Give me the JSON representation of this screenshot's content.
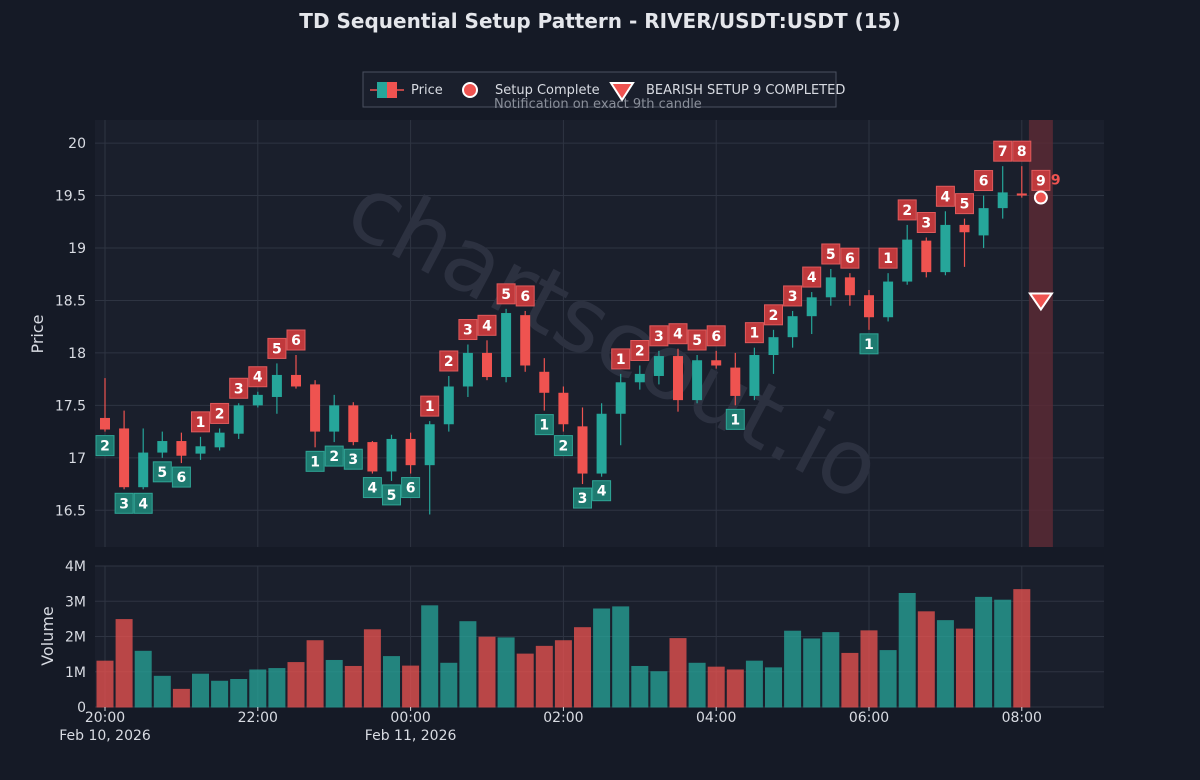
{
  "chart_data": {
    "type": "candlestick",
    "title": "TD Sequential Setup Pattern - RIVER/USDT:USDT (15)",
    "watermark": "chartscout.io",
    "price_axis": {
      "label": "Price",
      "ylim": [
        16.15,
        20.22
      ],
      "ticks": [
        16.5,
        17,
        17.5,
        18,
        18.5,
        19,
        19.5,
        20
      ],
      "tick_labels": [
        "16.5",
        "17",
        "17.5",
        "18",
        "18.5",
        "19",
        "19.5",
        "20"
      ]
    },
    "volume_axis": {
      "label": "Volume",
      "ylim": [
        0,
        4000000
      ],
      "ticks": [
        0,
        1000000,
        2000000,
        3000000,
        4000000
      ],
      "tick_labels": [
        "0",
        "1M",
        "2M",
        "3M",
        "4M"
      ]
    },
    "x_axis": {
      "ticks": [
        {
          "index": 0,
          "time": "20:00",
          "date": "Feb 10, 2026"
        },
        {
          "index": 8,
          "time": "22:00",
          "date": ""
        },
        {
          "index": 16,
          "time": "00:00",
          "date": "Feb 11, 2026"
        },
        {
          "index": 24,
          "time": "02:00",
          "date": ""
        },
        {
          "index": 32,
          "time": "04:00",
          "date": ""
        },
        {
          "index": 40,
          "time": "06:00",
          "date": ""
        },
        {
          "index": 48,
          "time": "08:00",
          "date": ""
        }
      ],
      "count": 52
    },
    "legend": {
      "price": "Price",
      "setup_complete": "Setup Complete",
      "bearish": "BEARISH SETUP 9 COMPLETED",
      "note": "Notification on exact 9th candle"
    },
    "colors": {
      "up": "#26a69a",
      "down": "#ef5350",
      "bg": "#151a26",
      "plot_bg": "#1a1f2c",
      "grid": "#2e3442",
      "up_label": "#1e7a70",
      "down_label": "#c0393c",
      "highlight": "#5a2a35"
    },
    "highlight_index": 49,
    "completed_label": "9",
    "completed_marker_price": 18.5,
    "candles": [
      {
        "o": 17.38,
        "h": 17.76,
        "l": 17.25,
        "c": 17.27,
        "v": 1300000,
        "n": "2",
        "p": "below"
      },
      {
        "o": 17.28,
        "h": 17.45,
        "l": 16.7,
        "c": 16.72,
        "v": 2480000,
        "n": "3",
        "p": "below"
      },
      {
        "o": 16.72,
        "h": 17.28,
        "l": 16.7,
        "c": 17.05,
        "v": 1580000,
        "n": "4",
        "p": "below"
      },
      {
        "o": 17.05,
        "h": 17.25,
        "l": 17.0,
        "c": 17.16,
        "v": 870000,
        "n": "5",
        "p": "below"
      },
      {
        "o": 17.16,
        "h": 17.24,
        "l": 16.95,
        "c": 17.02,
        "v": 500000,
        "n": "6",
        "p": "below"
      },
      {
        "o": 17.04,
        "h": 17.2,
        "l": 16.98,
        "c": 17.11,
        "v": 930000,
        "n": "1",
        "p": "above"
      },
      {
        "o": 17.1,
        "h": 17.28,
        "l": 17.07,
        "c": 17.24,
        "v": 730000,
        "n": "2",
        "p": "above"
      },
      {
        "o": 17.23,
        "h": 17.52,
        "l": 17.18,
        "c": 17.5,
        "v": 780000,
        "n": "3",
        "p": "above"
      },
      {
        "o": 17.5,
        "h": 17.63,
        "l": 17.48,
        "c": 17.6,
        "v": 1050000,
        "n": "4",
        "p": "above"
      },
      {
        "o": 17.58,
        "h": 17.9,
        "l": 17.42,
        "c": 17.79,
        "v": 1090000,
        "n": "5",
        "p": "above"
      },
      {
        "o": 17.79,
        "h": 17.98,
        "l": 17.66,
        "c": 17.68,
        "v": 1260000,
        "n": "6",
        "p": "above"
      },
      {
        "o": 17.7,
        "h": 17.74,
        "l": 17.1,
        "c": 17.25,
        "v": 1880000,
        "n": "1",
        "p": "below"
      },
      {
        "o": 17.25,
        "h": 17.6,
        "l": 17.15,
        "c": 17.5,
        "v": 1320000,
        "n": "2",
        "p": "below"
      },
      {
        "o": 17.5,
        "h": 17.53,
        "l": 17.12,
        "c": 17.15,
        "v": 1150000,
        "n": "3",
        "p": "below"
      },
      {
        "o": 17.15,
        "h": 17.16,
        "l": 16.85,
        "c": 16.87,
        "v": 2190000,
        "n": "4",
        "p": "below"
      },
      {
        "o": 16.87,
        "h": 17.22,
        "l": 16.78,
        "c": 17.18,
        "v": 1430000,
        "n": "5",
        "p": "below"
      },
      {
        "o": 17.18,
        "h": 17.24,
        "l": 16.85,
        "c": 16.93,
        "v": 1160000,
        "n": "6",
        "p": "below"
      },
      {
        "o": 16.93,
        "h": 17.35,
        "l": 16.46,
        "c": 17.32,
        "v": 2870000,
        "n": "1",
        "p": "above"
      },
      {
        "o": 17.32,
        "h": 17.78,
        "l": 17.25,
        "c": 17.68,
        "v": 1240000,
        "n": "2",
        "p": "above"
      },
      {
        "o": 17.68,
        "h": 18.08,
        "l": 17.58,
        "c": 18.0,
        "v": 2420000,
        "n": "3",
        "p": "above"
      },
      {
        "o": 18.0,
        "h": 18.12,
        "l": 17.74,
        "c": 17.77,
        "v": 1980000,
        "n": "4",
        "p": "above"
      },
      {
        "o": 17.77,
        "h": 18.42,
        "l": 17.72,
        "c": 18.38,
        "v": 1960000,
        "n": "5",
        "p": "above"
      },
      {
        "o": 18.36,
        "h": 18.4,
        "l": 17.82,
        "c": 17.88,
        "v": 1500000,
        "n": "6",
        "p": "above"
      },
      {
        "o": 17.82,
        "h": 17.95,
        "l": 17.45,
        "c": 17.62,
        "v": 1720000,
        "n": "1",
        "p": "below"
      },
      {
        "o": 17.62,
        "h": 17.68,
        "l": 17.25,
        "c": 17.32,
        "v": 1880000,
        "n": "2",
        "p": "below"
      },
      {
        "o": 17.3,
        "h": 17.48,
        "l": 16.75,
        "c": 16.85,
        "v": 2250000,
        "n": "3",
        "p": "below"
      },
      {
        "o": 16.85,
        "h": 17.52,
        "l": 16.82,
        "c": 17.42,
        "v": 2780000,
        "n": "4",
        "p": "below"
      },
      {
        "o": 17.42,
        "h": 17.8,
        "l": 17.12,
        "c": 17.72,
        "v": 2840000,
        "n": "1",
        "p": "above"
      },
      {
        "o": 17.72,
        "h": 17.88,
        "l": 17.65,
        "c": 17.8,
        "v": 1150000,
        "n": "2",
        "p": "above"
      },
      {
        "o": 17.78,
        "h": 18.02,
        "l": 17.7,
        "c": 17.97,
        "v": 1000000,
        "n": "3",
        "p": "above"
      },
      {
        "o": 17.97,
        "h": 18.04,
        "l": 17.44,
        "c": 17.55,
        "v": 1940000,
        "n": "4",
        "p": "above"
      },
      {
        "o": 17.55,
        "h": 17.98,
        "l": 17.52,
        "c": 17.93,
        "v": 1240000,
        "n": "5",
        "p": "above"
      },
      {
        "o": 17.93,
        "h": 18.02,
        "l": 17.85,
        "c": 17.88,
        "v": 1130000,
        "n": "6",
        "p": "above"
      },
      {
        "o": 17.86,
        "h": 18.0,
        "l": 17.5,
        "c": 17.59,
        "v": 1050000,
        "n": "1",
        "p": "below"
      },
      {
        "o": 17.59,
        "h": 18.05,
        "l": 17.55,
        "c": 17.98,
        "v": 1300000,
        "n": "1",
        "p": "above"
      },
      {
        "o": 17.98,
        "h": 18.22,
        "l": 17.8,
        "c": 18.15,
        "v": 1110000,
        "n": "2",
        "p": "above"
      },
      {
        "o": 18.15,
        "h": 18.4,
        "l": 18.05,
        "c": 18.35,
        "v": 2150000,
        "n": "3",
        "p": "above"
      },
      {
        "o": 18.35,
        "h": 18.58,
        "l": 18.18,
        "c": 18.53,
        "v": 1930000,
        "n": "4",
        "p": "above"
      },
      {
        "o": 18.53,
        "h": 18.8,
        "l": 18.45,
        "c": 18.72,
        "v": 2110000,
        "n": "5",
        "p": "above"
      },
      {
        "o": 18.72,
        "h": 18.76,
        "l": 18.45,
        "c": 18.55,
        "v": 1520000,
        "n": "6",
        "p": "above"
      },
      {
        "o": 18.55,
        "h": 18.6,
        "l": 18.22,
        "c": 18.34,
        "v": 2160000,
        "n": "1",
        "p": "below"
      },
      {
        "o": 18.34,
        "h": 18.76,
        "l": 18.3,
        "c": 18.68,
        "v": 1600000,
        "n": "1",
        "p": "above"
      },
      {
        "o": 18.68,
        "h": 19.22,
        "l": 18.65,
        "c": 19.08,
        "v": 3220000,
        "n": "2",
        "p": "above"
      },
      {
        "o": 19.07,
        "h": 19.1,
        "l": 18.72,
        "c": 18.77,
        "v": 2700000,
        "n": "3",
        "p": "above"
      },
      {
        "o": 18.77,
        "h": 19.35,
        "l": 18.74,
        "c": 19.22,
        "v": 2450000,
        "n": "4",
        "p": "above"
      },
      {
        "o": 19.22,
        "h": 19.28,
        "l": 18.82,
        "c": 19.15,
        "v": 2210000,
        "n": "5",
        "p": "above"
      },
      {
        "o": 19.12,
        "h": 19.5,
        "l": 19.0,
        "c": 19.38,
        "v": 3110000,
        "n": "6",
        "p": "above"
      },
      {
        "o": 19.38,
        "h": 19.78,
        "l": 19.28,
        "c": 19.53,
        "v": 3030000,
        "n": "7",
        "p": "above"
      },
      {
        "o": 19.52,
        "h": 19.78,
        "l": 19.48,
        "c": 19.5,
        "v": 3330000,
        "n": "8",
        "p": "above"
      },
      {
        "o": 19.5,
        "h": 19.53,
        "l": 19.47,
        "c": 19.5,
        "v": 0,
        "n": "9",
        "p": "top"
      }
    ]
  }
}
